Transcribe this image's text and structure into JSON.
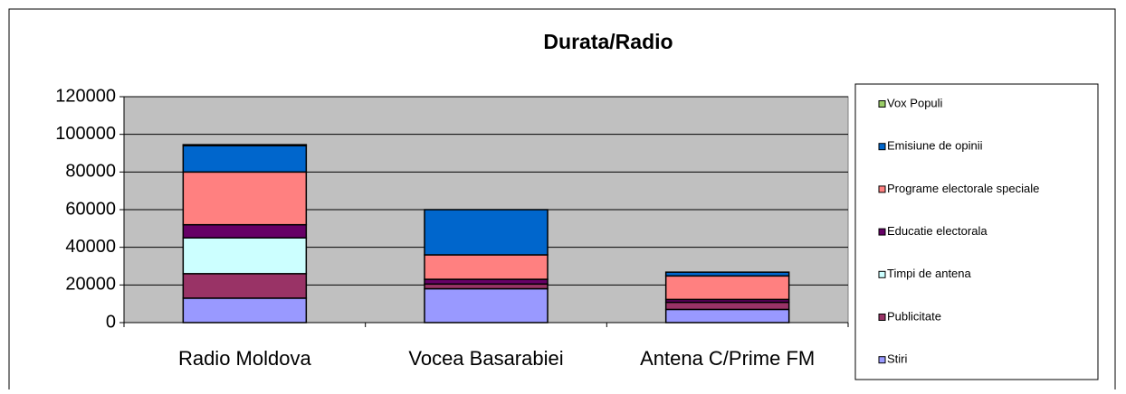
{
  "chart_data": {
    "type": "stacked-bar",
    "title": "Durata/Radio",
    "categories": [
      "Radio Moldova",
      "Vocea Basarabiei",
      "Antena C/Prime FM"
    ],
    "series": [
      {
        "name": "Stiri",
        "color": "#9999ff",
        "values": [
          13000,
          18000,
          7000
        ]
      },
      {
        "name": "Publicitate",
        "color": "#993366",
        "values": [
          13000,
          2500,
          3800
        ]
      },
      {
        "name": "Timpi de antena",
        "color": "#ccffff",
        "values": [
          19000,
          0,
          0
        ]
      },
      {
        "name": "Educatie electorala",
        "color": "#660066",
        "values": [
          7000,
          2500,
          1500
        ]
      },
      {
        "name": "Programe electorale speciale",
        "color": "#ff8080",
        "values": [
          28000,
          13000,
          12500
        ]
      },
      {
        "name": "Emisiune de opinii",
        "color": "#0066cc",
        "values": [
          14000,
          24000,
          2000
        ]
      },
      {
        "name": "Vox Populi",
        "color": "#99cc66",
        "values": [
          500,
          0,
          0
        ]
      }
    ],
    "ylim": [
      0,
      120000
    ],
    "yticks": [
      0,
      20000,
      40000,
      60000,
      80000,
      100000,
      120000
    ],
    "grid": true,
    "plot_background": "#c0c0c0",
    "legend": "right"
  }
}
